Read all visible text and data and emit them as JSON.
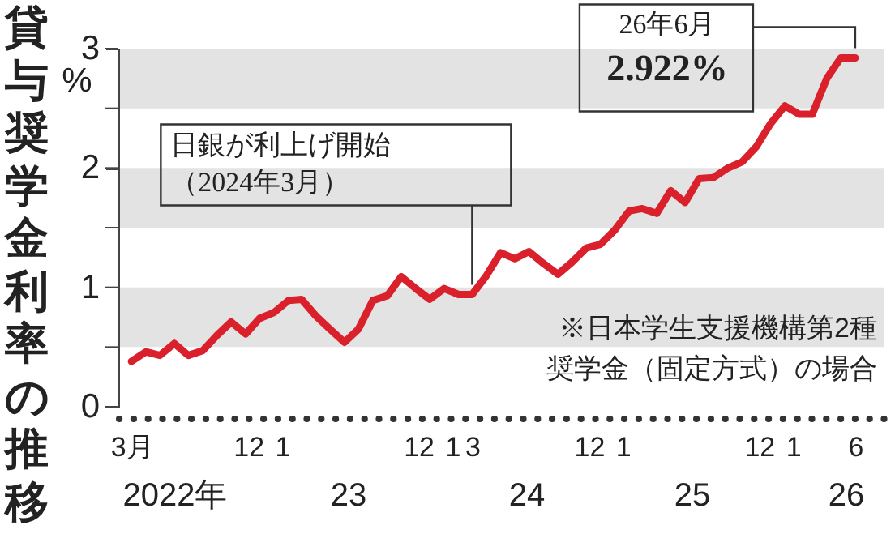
{
  "chart_data": {
    "type": "line",
    "title": "貸与奨学金利率の推移",
    "ylabel": "%",
    "x": [
      "2022-03",
      "2022-04",
      "2022-05",
      "2022-06",
      "2022-07",
      "2022-08",
      "2022-09",
      "2022-10",
      "2022-11",
      "2022-12",
      "2023-01",
      "2023-02",
      "2023-03",
      "2023-04",
      "2023-05",
      "2023-06",
      "2023-07",
      "2023-08",
      "2023-09",
      "2023-10",
      "2023-11",
      "2023-12",
      "2024-01",
      "2024-02",
      "2024-03",
      "2024-04",
      "2024-05",
      "2024-06",
      "2024-07",
      "2024-08",
      "2024-09",
      "2024-10",
      "2024-11",
      "2024-12",
      "2025-01",
      "2025-02",
      "2025-03",
      "2025-04",
      "2025-05",
      "2025-06",
      "2025-07",
      "2025-08",
      "2025-09",
      "2025-10",
      "2025-11",
      "2025-12",
      "2026-01",
      "2026-02",
      "2026-03",
      "2026-04",
      "2026-05",
      "2026-06"
    ],
    "series": [
      {
        "color": "#d9202b",
        "values": [
          0.38,
          0.46,
          0.43,
          0.53,
          0.43,
          0.47,
          0.6,
          0.71,
          0.61,
          0.74,
          0.79,
          0.89,
          0.9,
          0.76,
          0.65,
          0.54,
          0.65,
          0.89,
          0.93,
          1.09,
          0.99,
          0.9,
          0.99,
          0.94,
          0.94,
          1.1,
          1.29,
          1.24,
          1.3,
          1.2,
          1.11,
          1.21,
          1.33,
          1.36,
          1.48,
          1.64,
          1.66,
          1.62,
          1.81,
          1.71,
          1.91,
          1.92,
          2.0,
          2.05,
          2.18,
          2.37,
          2.52,
          2.45,
          2.45,
          2.75,
          2.922,
          2.922
        ]
      }
    ],
    "xlim": [
      "2022-02",
      "2026-08"
    ],
    "xticks": [
      {
        "value": "2022-03",
        "label": "3月"
      },
      {
        "value": "2022-12",
        "label": "12"
      },
      {
        "value": "2023-01",
        "label": "1"
      },
      {
        "value": "2023-12",
        "label": "12"
      },
      {
        "value": "2024-01",
        "label": "1"
      },
      {
        "value": "2024-03",
        "label": "3"
      },
      {
        "value": "2024-12",
        "label": "12"
      },
      {
        "value": "2025-01",
        "label": "1"
      },
      {
        "value": "2025-12",
        "label": "12"
      },
      {
        "value": "2026-01",
        "label": "1"
      },
      {
        "value": "2026-06",
        "label": "6"
      }
    ],
    "ylim": [
      0,
      3
    ],
    "yticks": [
      0,
      {
        "value": 0.5,
        "label": null
      },
      1,
      {
        "value": 1.5,
        "label": null
      },
      2,
      {
        "value": 2.5,
        "label": null
      },
      3
    ],
    "bands": [
      {
        "axis": "y",
        "from": 0.5,
        "to": 1,
        "color": "#e3e3e3"
      },
      {
        "axis": "y",
        "from": 1.5,
        "to": 2,
        "color": "#e3e3e3"
      },
      {
        "axis": "y",
        "from": 2.5,
        "to": 3,
        "color": "#e3e3e3"
      }
    ],
    "ref_lines": [
      {
        "axis": "x",
        "value": "2024-03",
        "label": "日銀が利上げ開始（2024年3月）",
        "color": "#333333"
      }
    ],
    "annotations": [
      {
        "text": "26年6月2.922%",
        "x": "2026-06",
        "y": 2.922
      },
      "※日本学生支援機構第2種奨学金（固定方式）の場合",
      "2022年",
      "23",
      "24",
      "25",
      "26"
    ],
    "marker": "none",
    "line_style": "solid"
  }
}
